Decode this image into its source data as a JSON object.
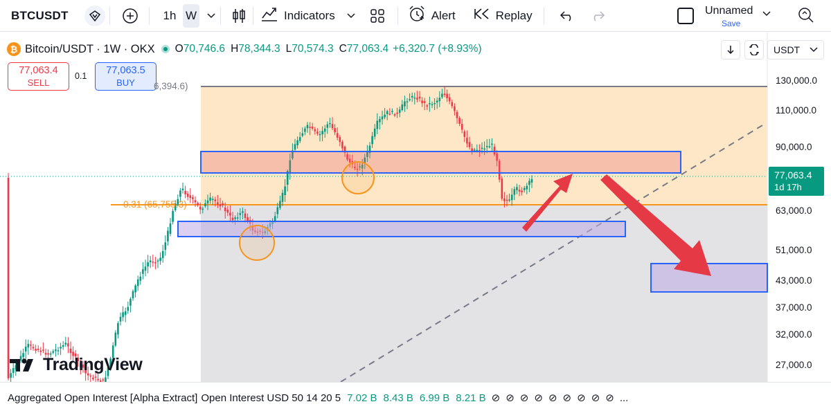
{
  "toolbar": {
    "symbol": "BTCUSDT",
    "timeframe_1h": "1h",
    "timeframe_w": "W",
    "indicators_label": "Indicators",
    "alert_label": "Alert",
    "replay_label": "Replay",
    "layout_name": "Unnamed",
    "layout_save": "Save"
  },
  "header": {
    "symbol_desc": "Bitcoin/USDT · 1W · OKX",
    "open_key": "O",
    "open_val": "70,746.6",
    "high_key": "H",
    "high_val": "78,344.3",
    "low_key": "L",
    "low_val": "70,574.3",
    "close_key": "C",
    "close_val": "77,063.4",
    "change": "+6,320.7 (+8.93%)"
  },
  "trade": {
    "sell_price": "77,063.4",
    "sell_label": "SELL",
    "spread": "0.1",
    "buy_price": "77,063.5",
    "buy_label": "BUY"
  },
  "currency": "USDT",
  "price_axis": {
    "labels": [
      "130,000.0",
      "110,000.0",
      "90,000.0",
      "63,000.0",
      "51,000.0",
      "43,000.0",
      "37,000.0",
      "32,000.0",
      "27,000.0"
    ],
    "current_price": "77,063.4",
    "countdown": "1d 17h"
  },
  "annotations": {
    "fib_level": "0.31 (65,755.3)",
    "fib_top": "6,394.6)"
  },
  "branding": {
    "logo_text": "TradingView"
  },
  "indicator": {
    "name": "Aggregated Open Interest [Alpha Extract]",
    "params": "Open Interest USD 50 14 20 5",
    "values": [
      "7.02 B",
      "8.43 B",
      "6.99 B",
      "8.21 B"
    ],
    "na_count": 9,
    "more": "..."
  },
  "colors": {
    "up": "#089981",
    "down": "#f23645",
    "fib": "#f7941d",
    "zone_border": "#2962ff",
    "arrow": "#e53946"
  }
}
